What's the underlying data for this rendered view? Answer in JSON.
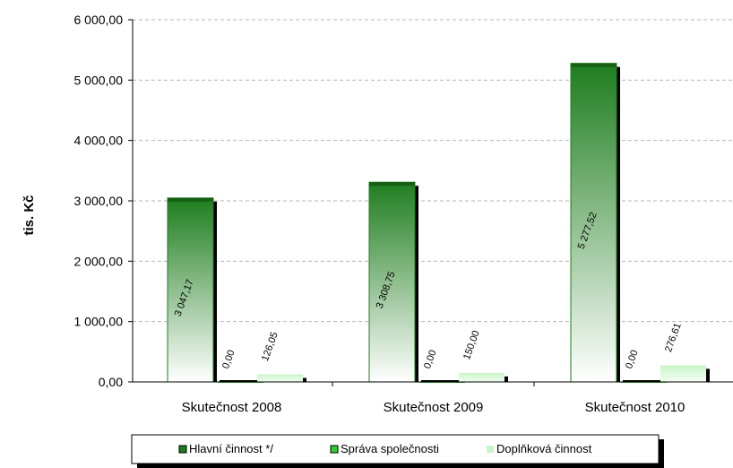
{
  "chart_data": {
    "type": "bar",
    "categories": [
      "Skutečnost 2008",
      "Skutečnost 2009",
      "Skutečnost 2010"
    ],
    "series": [
      {
        "name": "Hlavní činnost */",
        "values": [
          3047.17,
          3308.75,
          5277.52
        ],
        "labels": [
          "3 047,17",
          "3 308,75",
          "5 277,52"
        ],
        "color": "#1e7d1e"
      },
      {
        "name": "Správa společnosti",
        "values": [
          0.0,
          0.0,
          0.0
        ],
        "labels": [
          "0,00",
          "0,00",
          "0,00"
        ],
        "color": "#2ecc2e"
      },
      {
        "name": "Doplňková činnost",
        "values": [
          126.05,
          150.0,
          276.61
        ],
        "labels": [
          "126,05",
          "150,00",
          "276,61"
        ],
        "color": "#c8f5c8"
      }
    ],
    "ylabel": "tis. Kč",
    "xlabel": "",
    "ylim": [
      0,
      6000
    ],
    "yticks": [
      0,
      1000,
      2000,
      3000,
      4000,
      5000,
      6000
    ],
    "ytick_labels": [
      "0,00",
      "1 000,00",
      "2 000,00",
      "3 000,00",
      "4 000,00",
      "5 000,00",
      "6 000,00"
    ],
    "grid": true,
    "legend_position": "bottom"
  }
}
